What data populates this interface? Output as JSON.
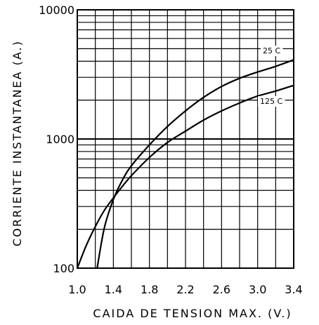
{
  "chart_data": {
    "type": "line",
    "xlabel": "CAIDA DE TENSION MAX. (V.)",
    "ylabel": "CORRIENTE INSTANTANEA (A.)",
    "xlim": [
      1.0,
      3.4
    ],
    "ylim": [
      100,
      10000
    ],
    "yscale": "log",
    "grid": true,
    "x_ticks": [
      "1.0",
      "1.4",
      "1.8",
      "2.2",
      "2.6",
      "3.0",
      "3.4"
    ],
    "x_tick_values": [
      1.0,
      1.4,
      1.8,
      2.2,
      2.6,
      3.0,
      3.4
    ],
    "y_ticks": [
      "100",
      "1000",
      "10000"
    ],
    "y_tick_values": [
      100,
      1000,
      10000
    ],
    "series": [
      {
        "name": "25 C",
        "x": [
          1.22,
          1.3,
          1.4,
          1.5,
          1.6,
          1.8,
          2.0,
          2.2,
          2.4,
          2.6,
          2.8,
          3.0,
          3.2,
          3.4
        ],
        "y": [
          100,
          205,
          340,
          480,
          620,
          900,
          1250,
          1650,
          2100,
          2550,
          2950,
          3300,
          3650,
          4100
        ]
      },
      {
        "name": "125 C",
        "x": [
          1.0,
          1.1,
          1.2,
          1.3,
          1.4,
          1.5,
          1.6,
          1.8,
          2.0,
          2.2,
          2.4,
          2.6,
          2.8,
          3.0,
          3.2,
          3.4
        ],
        "y": [
          100,
          150,
          210,
          280,
          350,
          430,
          520,
          720,
          940,
          1150,
          1400,
          1650,
          1900,
          2150,
          2350,
          2600
        ]
      }
    ]
  }
}
